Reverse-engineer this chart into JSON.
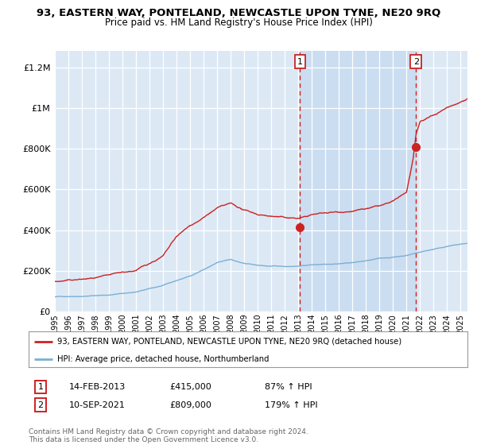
{
  "title": "93, EASTERN WAY, PONTELAND, NEWCASTLE UPON TYNE, NE20 9RQ",
  "subtitle": "Price paid vs. HM Land Registry's House Price Index (HPI)",
  "xlim": [
    1995.0,
    2025.5
  ],
  "ylim": [
    0,
    1280000
  ],
  "yticks": [
    0,
    200000,
    400000,
    600000,
    800000,
    1000000,
    1200000
  ],
  "ytick_labels": [
    "£0",
    "£200K",
    "£400K",
    "£600K",
    "£800K",
    "£1M",
    "£1.2M"
  ],
  "xticks": [
    1995,
    1996,
    1997,
    1998,
    1999,
    2000,
    2001,
    2002,
    2003,
    2004,
    2005,
    2006,
    2007,
    2008,
    2009,
    2010,
    2011,
    2012,
    2013,
    2014,
    2015,
    2016,
    2017,
    2018,
    2019,
    2020,
    2021,
    2022,
    2023,
    2024,
    2025
  ],
  "background_color": "#ffffff",
  "plot_bg_color": "#dce9f5",
  "grid_color": "#c8d8ec",
  "hpi_line_color": "#7bafd4",
  "price_line_color": "#cc2222",
  "sale1_x": 2013.12,
  "sale1_y": 415000,
  "sale2_x": 2021.7,
  "sale2_y": 809000,
  "annotation1_date": "14-FEB-2013",
  "annotation1_price": "£415,000",
  "annotation1_hpi": "87% ↑ HPI",
  "annotation2_date": "10-SEP-2021",
  "annotation2_price": "£809,000",
  "annotation2_hpi": "179% ↑ HPI",
  "legend_line1": "93, EASTERN WAY, PONTELAND, NEWCASTLE UPON TYNE, NE20 9RQ (detached house)",
  "legend_line2": "HPI: Average price, detached house, Northumberland",
  "footnote": "Contains HM Land Registry data © Crown copyright and database right 2024.\nThis data is licensed under the Open Government Licence v3.0."
}
